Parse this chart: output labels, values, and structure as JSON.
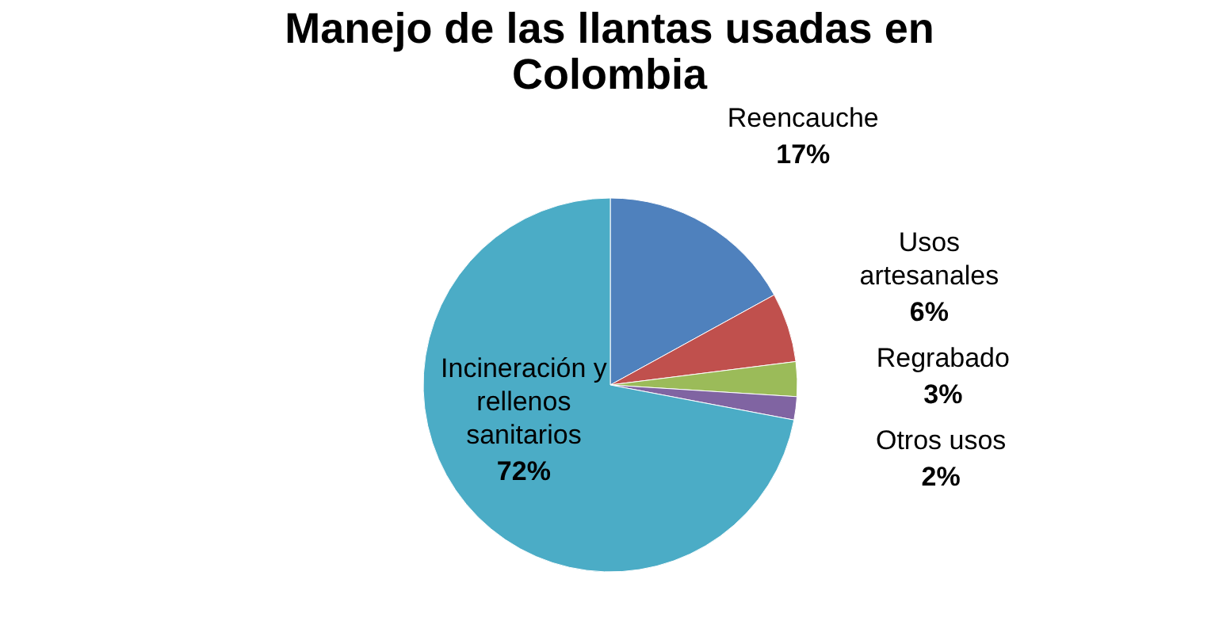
{
  "chart_data": {
    "type": "pie",
    "title": "Manejo de las llantas usadas en Colombia",
    "categories": [
      "Reencauche",
      "Usos artesanales",
      "Regrabado",
      "Otros usos",
      "Incineración y rellenos sanitarios"
    ],
    "values": [
      17,
      6,
      3,
      2,
      72
    ],
    "colors": [
      "#4f81bd",
      "#c0504d",
      "#9bbb59",
      "#8064a2",
      "#4bacc6"
    ],
    "value_labels": [
      "17%",
      "6%",
      "3%",
      "2%",
      "72%"
    ],
    "legend": false
  }
}
